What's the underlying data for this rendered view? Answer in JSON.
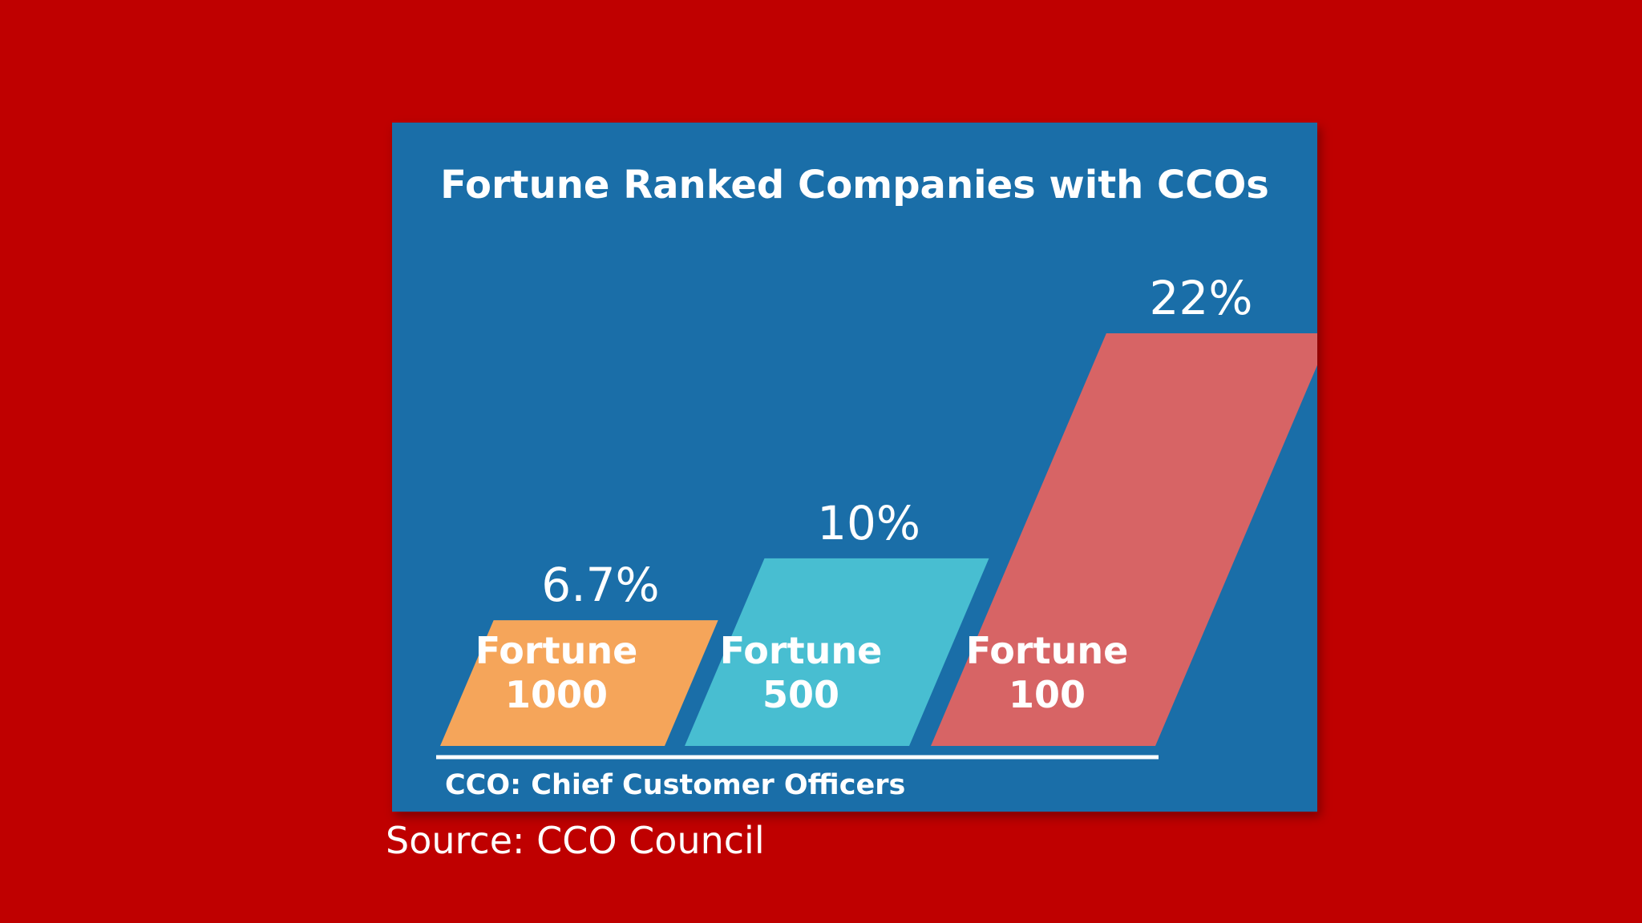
{
  "chart_data": {
    "type": "bar",
    "title": "Fortune Ranked Companies with CCOs",
    "categories": [
      "Fortune 1000",
      "Fortune 500",
      "Fortune 100"
    ],
    "category_lines": [
      [
        "Fortune",
        "1000"
      ],
      [
        "Fortune",
        "500"
      ],
      [
        "Fortune",
        "100"
      ]
    ],
    "values": [
      6.7,
      10,
      22
    ],
    "value_labels": [
      "6.7%",
      "10%",
      "22%"
    ],
    "colors": [
      "#f5a55a",
      "#48bed1",
      "#d76465"
    ],
    "ylim": [
      0,
      22
    ],
    "grid": false,
    "footnote": "CCO: Chief Customer Officers"
  },
  "source": "Source: CCO Council"
}
